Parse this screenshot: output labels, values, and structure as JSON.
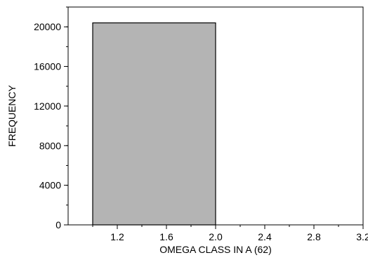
{
  "chart_data": {
    "type": "bar",
    "bins": [
      {
        "x_start": 1.0,
        "x_end": 2.0,
        "value": 20400
      },
      {
        "x_start": 2.0,
        "x_end": 3.2,
        "value": 0
      }
    ],
    "xlabel": "OMEGA CLASS IN A (62)",
    "ylabel": "FREQUENCY",
    "xlim": [
      0.8,
      3.2
    ],
    "ylim": [
      0,
      22000
    ],
    "x_major_ticks": [
      "1.2",
      "1.6",
      "2.0",
      "2.4",
      "2.8",
      "3.2"
    ],
    "y_major_ticks": [
      "0",
      "4000",
      "8000",
      "12000",
      "16000",
      "20000"
    ],
    "grid": false,
    "bar_color": "#b4b4b4",
    "edge_color": "#000000"
  }
}
